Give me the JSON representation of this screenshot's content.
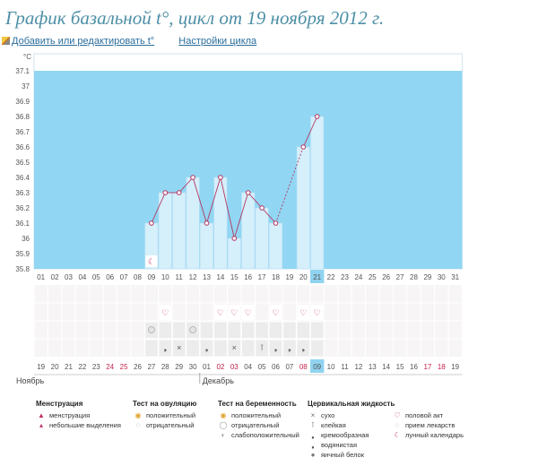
{
  "title": "График базальной t°, цикл от 19 ноября 2012 г.",
  "links": {
    "edit": "Добавить или редактировать t°",
    "settings": "Настройки цикла"
  },
  "chart_data": {
    "type": "line",
    "unit_label": "°C",
    "ylim": [
      35.8,
      37.1
    ],
    "yticks": [
      "37.1",
      "37",
      "36.9",
      "36.8",
      "36.7",
      "36.6",
      "36.5",
      "36.4",
      "36.3",
      "36.2",
      "36.1",
      "36",
      "35.9",
      "35.8"
    ],
    "day_labels": [
      "01",
      "02",
      "03",
      "04",
      "05",
      "06",
      "07",
      "08",
      "09",
      "10",
      "11",
      "12",
      "13",
      "14",
      "15",
      "16",
      "17",
      "18",
      "19",
      "20",
      "21",
      "22",
      "23",
      "24",
      "25",
      "26",
      "27",
      "28",
      "29",
      "30",
      "31"
    ],
    "date_labels": [
      "19",
      "20",
      "21",
      "22",
      "23",
      "24",
      "25",
      "26",
      "27",
      "28",
      "29",
      "30",
      "01",
      "02",
      "03",
      "04",
      "05",
      "06",
      "07",
      "08",
      "09",
      "10",
      "11",
      "12",
      "13",
      "14",
      "15",
      "16",
      "17",
      "18",
      "19"
    ],
    "red_dates": [
      5,
      6,
      13,
      14,
      19,
      28,
      29
    ],
    "highlight_day": 21,
    "month_labels": [
      "Ноябрь",
      "Декабрь"
    ],
    "temps": [
      null,
      null,
      null,
      null,
      null,
      null,
      null,
      null,
      36.1,
      36.3,
      36.3,
      36.4,
      36.1,
      36.4,
      36.0,
      36.3,
      36.2,
      36.1,
      null,
      36.6,
      36.8,
      null,
      null,
      null,
      null,
      null,
      null,
      null,
      null,
      null,
      null
    ],
    "colors": {
      "sky": "#91d6f3",
      "bar": "#d5effb",
      "line": "#b33661",
      "highlight": "#8fd3f0"
    }
  },
  "markers": {
    "heart_days": [
      9,
      13,
      14,
      15,
      17,
      19,
      20
    ],
    "ovulation_negative_days": [
      8,
      11
    ],
    "drop_days": [
      9,
      10,
      12,
      14,
      16,
      17,
      18,
      19
    ],
    "drop_symbols": [
      "❟",
      "×",
      "❟",
      "×",
      "⊺",
      "❟",
      "❟",
      "❟"
    ]
  },
  "legend": [
    {
      "title": "Менструация",
      "items": [
        {
          "icon": "▲",
          "text": "менструация",
          "color": "#c0306a"
        },
        {
          "icon": "▴",
          "text": "небольшие выделения",
          "color": "#c0306a"
        }
      ]
    },
    {
      "title": "Тест на овуляцию",
      "items": [
        {
          "icon": "◉",
          "text": "положительный",
          "color": "#e2a431"
        },
        {
          "icon": "◌",
          "text": "отрицательный",
          "color": "#888"
        }
      ]
    },
    {
      "title": "Тест на беременность",
      "items": [
        {
          "icon": "◉",
          "text": "положительный",
          "color": "#e2a431"
        },
        {
          "icon": "◯",
          "text": "отрицательный",
          "color": "#999"
        },
        {
          "icon": "◐",
          "text": "слабоположительный",
          "color": "#999"
        }
      ]
    },
    {
      "title": "Цервикальная жидкость",
      "items": [
        {
          "icon": "×",
          "text": "сухо",
          "color": "#666"
        },
        {
          "icon": "⊺",
          "text": "клейкая",
          "color": "#666"
        },
        {
          "icon": "❟",
          "text": "кремообразная",
          "color": "#555"
        },
        {
          "icon": "❟",
          "text": "водянистая",
          "color": "#555"
        },
        {
          "icon": "●",
          "text": "яичный белок",
          "color": "#777"
        }
      ]
    },
    {
      "title": "",
      "items": [
        {
          "icon": "♡",
          "text": "половой акт",
          "color": "#c0306a"
        },
        {
          "icon": "◌",
          "text": "прием лекарств",
          "color": "#999"
        },
        {
          "icon": "☾",
          "text": "лунный календарь",
          "color": "#c0306a"
        }
      ]
    }
  ]
}
